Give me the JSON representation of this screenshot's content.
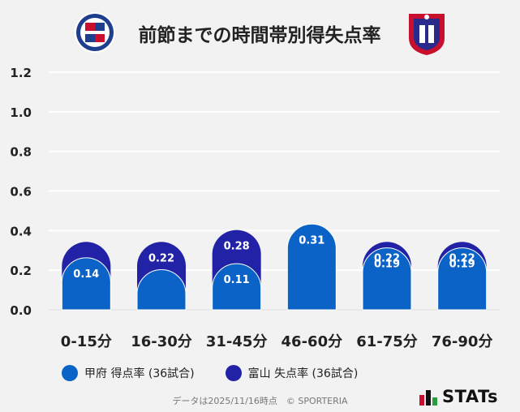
{
  "colors": {
    "kofu": "#0b63c7",
    "toyama": "#2222a6",
    "background": "#f2f2f2",
    "grid": "#ffffff",
    "text": "#222222"
  },
  "chart_data": {
    "type": "bar",
    "title": "前節までの時間帯別得失点率",
    "categories": [
      "0-15分",
      "16-30分",
      "31-45分",
      "46-60分",
      "61-75分",
      "76-90分"
    ],
    "series": [
      {
        "name": "甲府 得点率 (36試合)",
        "values": [
          0.14,
          0.08,
          0.11,
          0.31,
          0.19,
          0.19
        ],
        "labels": [
          "0.14",
          "",
          "0.11",
          "0.31",
          "0.19",
          "0.19"
        ]
      },
      {
        "name": "富山 失点率 (36試合)",
        "values": [
          0.22,
          0.22,
          0.28,
          0.31,
          0.22,
          0.22
        ],
        "labels": [
          "",
          "0.22",
          "0.28",
          "0.31",
          "0.22",
          "0.22"
        ]
      }
    ],
    "yticks": [
      "0.0",
      "0.2",
      "0.4",
      "0.6",
      "0.8",
      "1.0",
      "1.2"
    ],
    "ylim": [
      0,
      1.2
    ],
    "legend_position": "bottom"
  },
  "footer": {
    "note": "データは2025/11/16時点　© SPORTERIA",
    "brand": "STATs"
  }
}
